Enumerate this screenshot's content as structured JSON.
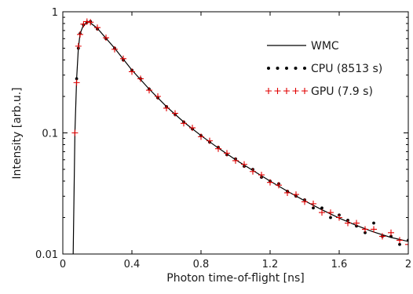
{
  "chart_data": {
    "type": "line",
    "title": "",
    "xlabel": "Photon time-of-flight [ns]",
    "ylabel": "Intensity [arb.u.]",
    "xlim": [
      0,
      2
    ],
    "ylim": [
      0.01,
      1
    ],
    "yscale": "log",
    "grid": false,
    "legend_position": "top-right",
    "x_ticks": [
      0,
      0.4,
      0.8,
      1.2,
      1.6,
      2
    ],
    "x_tick_labels": [
      "0",
      "0.4",
      "0.8",
      "1.2",
      "1.6",
      "2"
    ],
    "y_ticks": [
      0.01,
      0.1,
      1
    ],
    "y_tick_labels": [
      "0.01",
      "0.1",
      "1"
    ],
    "series": [
      {
        "name": "WMC",
        "style": "line",
        "color": "#000000",
        "x": [
          0.06,
          0.07,
          0.08,
          0.09,
          0.1,
          0.12,
          0.15,
          0.2,
          0.3,
          0.4,
          0.5,
          0.6,
          0.7,
          0.8,
          0.9,
          1.0,
          1.1,
          1.2,
          1.3,
          1.4,
          1.5,
          1.6,
          1.7,
          1.8,
          1.9,
          2.0
        ],
        "y": [
          0.01,
          0.1,
          0.28,
          0.5,
          0.66,
          0.78,
          0.83,
          0.73,
          0.5,
          0.33,
          0.23,
          0.165,
          0.123,
          0.095,
          0.075,
          0.06,
          0.049,
          0.04,
          0.033,
          0.0275,
          0.0232,
          0.0198,
          0.0172,
          0.0152,
          0.0137,
          0.0127
        ]
      },
      {
        "name": "CPU (8513 s)",
        "style": "dots",
        "color": "#000000",
        "x": [
          0.08,
          0.09,
          0.1,
          0.12,
          0.14,
          0.16,
          0.2,
          0.25,
          0.3,
          0.35,
          0.4,
          0.45,
          0.5,
          0.55,
          0.6,
          0.65,
          0.7,
          0.75,
          0.8,
          0.85,
          0.9,
          0.95,
          1.0,
          1.05,
          1.1,
          1.15,
          1.2,
          1.25,
          1.3,
          1.35,
          1.4,
          1.45,
          1.5,
          1.55,
          1.6,
          1.65,
          1.7,
          1.75,
          1.8,
          1.85,
          1.9,
          1.95,
          2.0
        ],
        "y": [
          0.28,
          0.5,
          0.66,
          0.78,
          0.82,
          0.83,
          0.72,
          0.6,
          0.5,
          0.4,
          0.33,
          0.28,
          0.23,
          0.195,
          0.165,
          0.142,
          0.123,
          0.108,
          0.095,
          0.084,
          0.076,
          0.066,
          0.061,
          0.053,
          0.05,
          0.043,
          0.04,
          0.038,
          0.033,
          0.03,
          0.028,
          0.024,
          0.024,
          0.02,
          0.021,
          0.019,
          0.017,
          0.015,
          0.018,
          0.014,
          0.014,
          0.012,
          0.013
        ]
      },
      {
        "name": "GPU (7.9 s)",
        "style": "plus",
        "color": "#e00000",
        "x": [
          0.07,
          0.08,
          0.09,
          0.1,
          0.12,
          0.14,
          0.16,
          0.2,
          0.25,
          0.3,
          0.35,
          0.4,
          0.45,
          0.5,
          0.55,
          0.6,
          0.65,
          0.7,
          0.75,
          0.8,
          0.85,
          0.9,
          0.95,
          1.0,
          1.05,
          1.1,
          1.15,
          1.2,
          1.25,
          1.3,
          1.35,
          1.4,
          1.45,
          1.5,
          1.55,
          1.6,
          1.65,
          1.7,
          1.75,
          1.8,
          1.85,
          1.9,
          1.95,
          2.0
        ],
        "y": [
          0.1,
          0.26,
          0.52,
          0.65,
          0.79,
          0.83,
          0.82,
          0.74,
          0.61,
          0.49,
          0.41,
          0.32,
          0.28,
          0.225,
          0.2,
          0.16,
          0.145,
          0.12,
          0.11,
          0.093,
          0.086,
          0.074,
          0.068,
          0.059,
          0.055,
          0.048,
          0.045,
          0.039,
          0.037,
          0.032,
          0.031,
          0.027,
          0.026,
          0.022,
          0.022,
          0.02,
          0.018,
          0.018,
          0.016,
          0.016,
          0.014,
          0.015,
          0.013,
          0.012
        ]
      }
    ]
  }
}
